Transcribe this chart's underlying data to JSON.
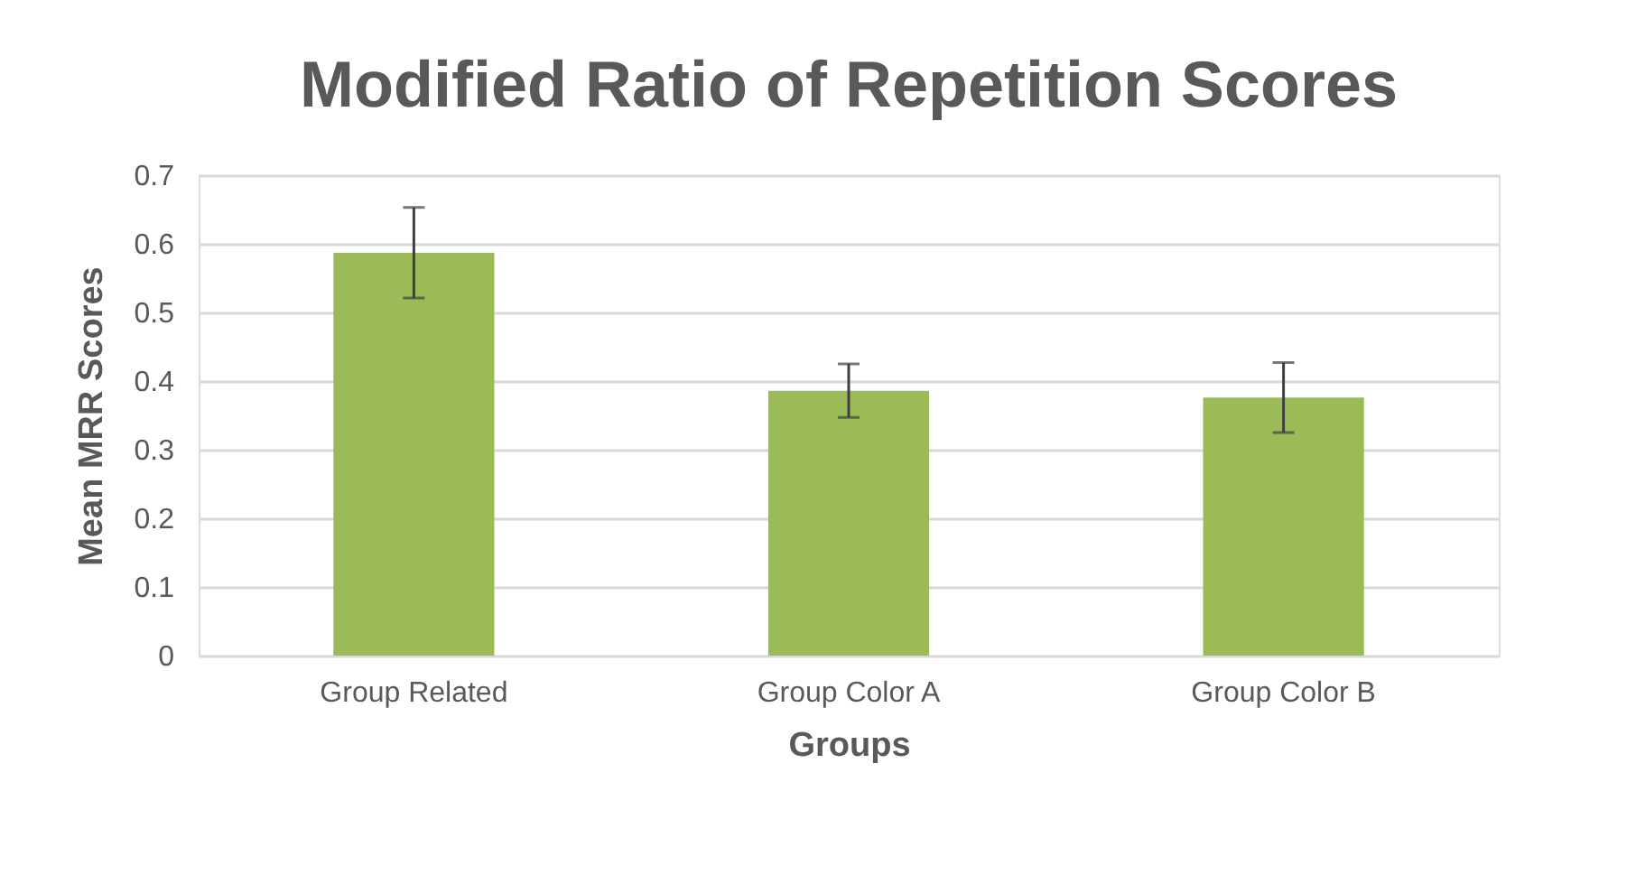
{
  "chart_data": {
    "type": "bar",
    "title": "Modified Ratio of Repetition Scores",
    "xlabel": "Groups",
    "ylabel": "Mean MRR Scores",
    "categories": [
      "Group Related",
      "Group Color A",
      "Group Color B"
    ],
    "values": [
      0.587,
      0.386,
      0.376
    ],
    "errors": [
      0.066,
      0.039,
      0.051
    ],
    "color": "#9bbb59",
    "ylim": [
      0,
      0.7
    ],
    "yticks": [
      0,
      0.1,
      0.2,
      0.3,
      0.4,
      0.5,
      0.6,
      0.7
    ],
    "grid": "y"
  }
}
